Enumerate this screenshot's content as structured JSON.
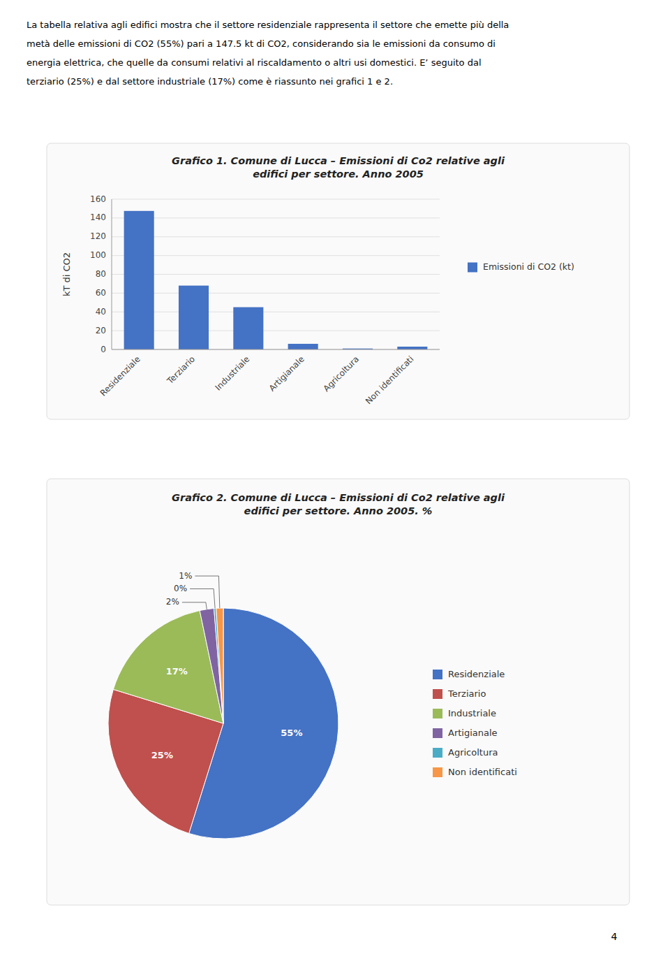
{
  "page_text": [
    "La tabella relativa agli edifici mostra che il settore residenziale rappresenta il settore che emette più della",
    "metà delle emissioni di CO2 (55%) pari a 147.5 kt di CO2, considerando sia le emissioni da consumo di",
    "energia elettrica, che quelle da consumi relativi al riscaldamento o altri usi domestici. E’ seguito dal",
    "terziario (25%) e dal settore industriale (17%) come è riassunto nei grafici 1 e 2."
  ],
  "page_number": "4",
  "chart_data": [
    {
      "type": "bar",
      "title": "Grafico 1. Comune di Lucca – Emissioni di Co2 relative agli\nedifici per settore. Anno 2005",
      "categories": [
        "Residenziale",
        "Terziario",
        "Industriale",
        "Artigianale",
        "Agricoltura",
        "Non identificati"
      ],
      "series": [
        {
          "name": "Emissioni di CO2 (kt)",
          "color": "#4472C4",
          "values": [
            147.5,
            68,
            45,
            6,
            1,
            3
          ]
        }
      ],
      "ylabel": "kT di CO2",
      "ylim": [
        0,
        160
      ],
      "yticks": [
        0,
        20,
        40,
        60,
        80,
        100,
        120,
        140,
        160
      ],
      "grid": true,
      "legend": "right"
    },
    {
      "type": "pie",
      "title": "Grafico 2. Comune di Lucca – Emissioni di Co2 relative agli\nedifici per settore. Anno 2005. %",
      "categories": [
        "Residenziale",
        "Terziario",
        "Industriale",
        "Artigianale",
        "Agricoltura",
        "Non identificati"
      ],
      "values": [
        55,
        25,
        17,
        2,
        0.3,
        1
      ],
      "value_labels": [
        "55%",
        "25%",
        "17%",
        "2%",
        "0%",
        "1%"
      ],
      "colors": [
        "#4472C4",
        "#C0504D",
        "#9BBB59",
        "#8064A2",
        "#4BACC6",
        "#F79646"
      ],
      "data_labels": true,
      "legend": "right"
    }
  ]
}
